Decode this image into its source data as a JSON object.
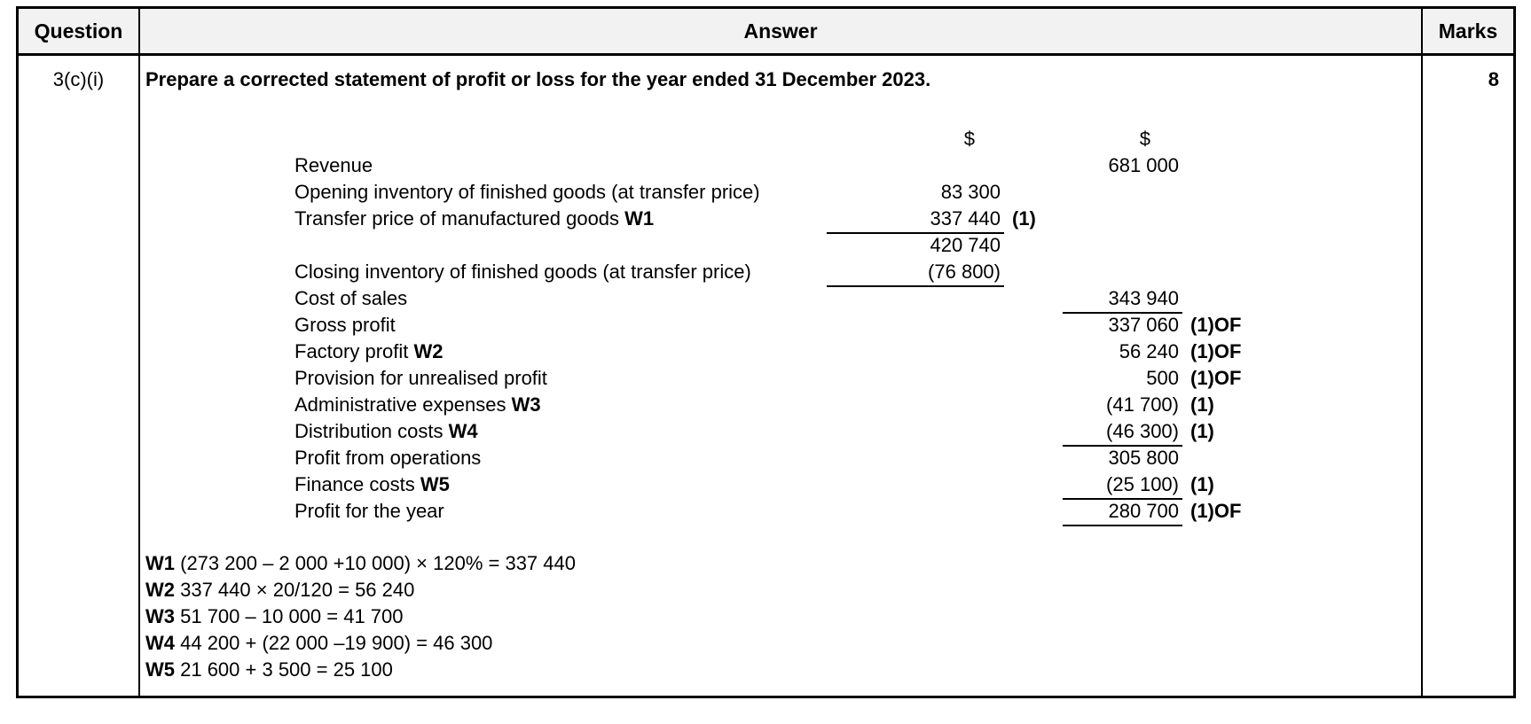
{
  "colors": {
    "header_bg": "#f2f2f2",
    "border": "#000000",
    "text": "#000000"
  },
  "header": {
    "question_label": "Question",
    "answer_label": "Answer",
    "marks_label": "Marks"
  },
  "row": {
    "question_id": "3(c)(i)",
    "marks": "8",
    "title": "Prepare a corrected statement of profit or loss for the year ended 31 December 2023.",
    "statement": {
      "currency_symbol": "$",
      "rows": [
        {
          "currency_header": true,
          "col1": "$",
          "col2": "$"
        },
        {
          "label": "Revenue",
          "col2": "681 000"
        },
        {
          "label": "Opening inventory of finished goods (at transfer price)",
          "col1": "83 300"
        },
        {
          "label": "Transfer price of manufactured goods",
          "ref": "W1",
          "col1": "337 440",
          "mark1": "(1)",
          "u1": true
        },
        {
          "col1": "420 740"
        },
        {
          "label": "Closing inventory of finished goods (at transfer price)",
          "col1": "(76 800)",
          "u1": true
        },
        {
          "label": "Cost of sales",
          "col2": "343 940",
          "u2": true
        },
        {
          "label": "Gross profit",
          "col2": "337 060",
          "mark2": "(1)OF"
        },
        {
          "label": "Factory profit",
          "ref": "W2",
          "col2": "56 240",
          "mark2": "(1)OF"
        },
        {
          "label": "Provision for unrealised profit",
          "col2": "500",
          "mark2": "(1)OF"
        },
        {
          "label": "Administrative expenses",
          "ref": "W3",
          "col2": "(41 700)",
          "mark2": "(1)"
        },
        {
          "label": "Distribution costs",
          "ref": "W4",
          "col2": "(46 300)",
          "mark2": "(1)",
          "u2": true
        },
        {
          "label": "Profit from operations",
          "col2": "305 800"
        },
        {
          "label": "Finance costs",
          "ref": "W5",
          "col2": "(25 100)",
          "mark2": "(1)",
          "u2": true
        },
        {
          "label": "Profit for the year",
          "col2": "280 700",
          "mark2": "(1)OF",
          "u2": true
        }
      ]
    },
    "workings": [
      {
        "ref": "W1",
        "text": "(273 200 – 2 000 +10 000) × 120% = 337 440"
      },
      {
        "ref": "W2",
        "text": "337 440 × 20/120 = 56 240"
      },
      {
        "ref": "W3",
        "text": "51 700 – 10 000 = 41 700"
      },
      {
        "ref": "W4",
        "text": "44 200 + (22 000 –19 900) = 46 300"
      },
      {
        "ref": "W5",
        "text": "21 600 + 3 500 = 25 100"
      }
    ]
  }
}
